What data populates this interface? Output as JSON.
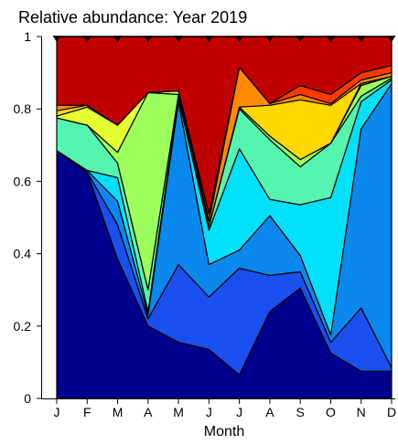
{
  "chart_data": {
    "type": "area",
    "title": "Relative abundance: Year 2019",
    "xlabel": "Month",
    "ylabel": "",
    "categories": [
      "J",
      "F",
      "M",
      "A",
      "M",
      "J",
      "J",
      "A",
      "S",
      "O",
      "N",
      "D"
    ],
    "ylim": [
      0,
      1
    ],
    "yticks": [
      "0",
      "0.2",
      "0.4",
      "0.6",
      "0.8",
      "1"
    ],
    "stacked": true,
    "grid": false,
    "legend": "none",
    "markers": "filled triangles at top of each month",
    "boundaries": [
      [
        0.685,
        0.625,
        0.385,
        0.2,
        0.155,
        0.135,
        0.065,
        0.24,
        0.305,
        0.125,
        0.075,
        0.075
      ],
      [
        0.685,
        0.625,
        0.385,
        0.2,
        0.155,
        0.135,
        0.065,
        0.24,
        0.305,
        0.125,
        0.075,
        0.075
      ],
      [
        0.685,
        0.625,
        0.48,
        0.22,
        0.37,
        0.28,
        0.36,
        0.34,
        0.35,
        0.155,
        0.25,
        0.085
      ],
      [
        0.685,
        0.63,
        0.545,
        0.23,
        0.82,
        0.37,
        0.41,
        0.505,
        0.395,
        0.175,
        0.745,
        0.87
      ],
      [
        0.685,
        0.63,
        0.61,
        0.24,
        0.83,
        0.465,
        0.69,
        0.55,
        0.535,
        0.555,
        0.82,
        0.88
      ],
      [
        0.775,
        0.755,
        0.65,
        0.3,
        0.84,
        0.475,
        0.8,
        0.715,
        0.64,
        0.705,
        0.835,
        0.885
      ],
      [
        0.775,
        0.755,
        0.68,
        0.845,
        0.84,
        0.475,
        0.805,
        0.725,
        0.66,
        0.705,
        0.865,
        0.89
      ],
      [
        0.78,
        0.805,
        0.755,
        0.845,
        0.85,
        0.475,
        0.805,
        0.725,
        0.66,
        0.705,
        0.87,
        0.89
      ],
      [
        0.795,
        0.81,
        0.755,
        0.845,
        0.85,
        0.475,
        0.805,
        0.81,
        0.825,
        0.81,
        0.87,
        0.89
      ],
      [
        0.81,
        0.81,
        0.755,
        0.845,
        0.85,
        0.49,
        0.915,
        0.815,
        0.84,
        0.815,
        0.88,
        0.9
      ],
      [
        0.81,
        0.81,
        0.755,
        0.845,
        0.85,
        0.51,
        0.915,
        0.815,
        0.865,
        0.84,
        0.9,
        0.92
      ],
      [
        1,
        1,
        1,
        1,
        1,
        1,
        1,
        1,
        1,
        1,
        1,
        1
      ]
    ],
    "series": [
      {
        "color": "#00008f"
      },
      {
        "color": "#0000ff"
      },
      {
        "color": "#1a4ff0"
      },
      {
        "color": "#0b88ee"
      },
      {
        "color": "#00e1f9"
      },
      {
        "color": "#55f5b0"
      },
      {
        "color": "#9eff5c"
      },
      {
        "color": "#e4ff30"
      },
      {
        "color": "#ffd800"
      },
      {
        "color": "#ff8a00"
      },
      {
        "color": "#ff3a00"
      },
      {
        "color": "#c00000"
      }
    ]
  }
}
